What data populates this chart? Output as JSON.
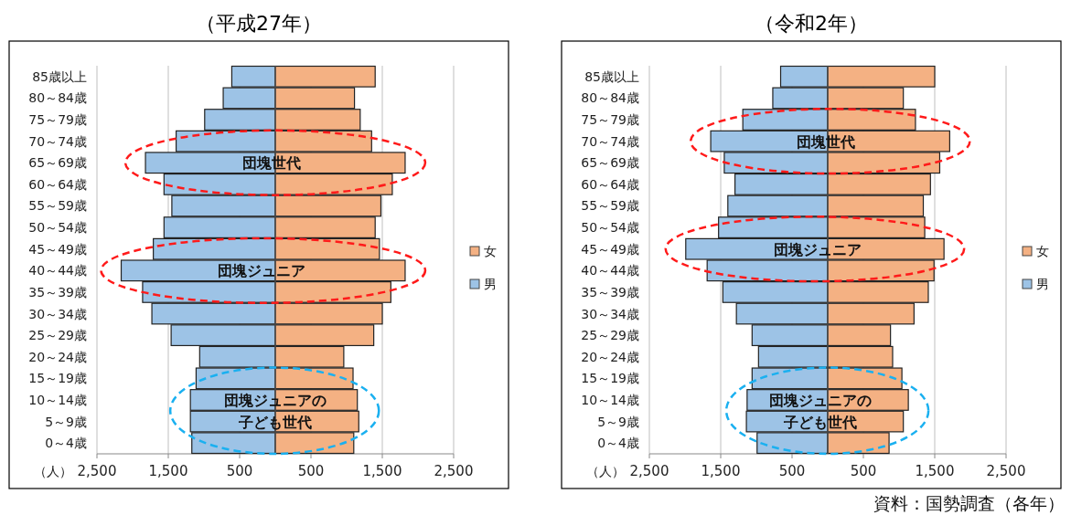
{
  "chart_data": [
    {
      "type": "bar",
      "orientation": "horizontal",
      "stacked": true,
      "title": "（平成27年）",
      "xlabel": "（人）",
      "categories": [
        "85歳以上",
        "80～84歳",
        "75～79歳",
        "70～74歳",
        "65～69歳",
        "60～64歳",
        "55～59歳",
        "50～54歳",
        "45～49歳",
        "40～44歳",
        "35～39歳",
        "30～34歳",
        "25～29歳",
        "20～24歳",
        "15～19歳",
        "10～14歳",
        "5～9歳",
        "0～4歳"
      ],
      "series": [
        {
          "name": "男",
          "color": "#9dc3e6",
          "values": [
            -610,
            -730,
            -990,
            -1390,
            -1820,
            -1560,
            -1450,
            -1560,
            -1710,
            -2160,
            -1860,
            -1730,
            -1460,
            -1060,
            -1110,
            -1190,
            -1190,
            -1170
          ]
        },
        {
          "name": "女",
          "color": "#f4b183",
          "values": [
            1400,
            1110,
            1190,
            1350,
            1820,
            1640,
            1480,
            1400,
            1460,
            1820,
            1620,
            1500,
            1380,
            960,
            1090,
            1150,
            1170,
            1100
          ]
        }
      ],
      "xlim": [
        -2500,
        2500
      ],
      "xticks": [
        {
          "value": -2500,
          "label": "2,500"
        },
        {
          "value": -1500,
          "label": "1,500"
        },
        {
          "value": -500,
          "label": "500"
        },
        {
          "value": 500,
          "label": "500"
        },
        {
          "value": 1500,
          "label": "1,500"
        },
        {
          "value": 2500,
          "label": "2,500"
        }
      ],
      "grid": "x",
      "legend": "right",
      "annotations": [
        {
          "text": "団塊世代",
          "x": -50,
          "y": "65～69歳"
        },
        {
          "text": "団塊ジュニア",
          "x": -190,
          "y": "40～44歳"
        },
        {
          "text": "団塊ジュニアの子ども世代",
          "x": 0,
          "y": "10～14歳"
        }
      ]
    },
    {
      "type": "bar",
      "orientation": "horizontal",
      "stacked": true,
      "title": "（令和2年）",
      "xlabel": "（人）",
      "categories": [
        "85歳以上",
        "80～84歳",
        "75～79歳",
        "70～74歳",
        "65～69歳",
        "60～64歳",
        "55～59歳",
        "50～54歳",
        "45～49歳",
        "40～44歳",
        "35～39歳",
        "30～34歳",
        "25～29歳",
        "20～24歳",
        "15～19歳",
        "10～14歳",
        "5～9歳",
        "0～4歳"
      ],
      "series": [
        {
          "name": "男",
          "color": "#9dc3e6",
          "values": [
            -660,
            -770,
            -1190,
            -1640,
            -1450,
            -1300,
            -1400,
            -1530,
            -1990,
            -1690,
            -1470,
            -1280,
            -1060,
            -970,
            -1060,
            -1130,
            -1140,
            -990
          ]
        },
        {
          "name": "女",
          "color": "#f4b183",
          "values": [
            1500,
            1060,
            1230,
            1710,
            1570,
            1440,
            1340,
            1360,
            1630,
            1490,
            1410,
            1210,
            880,
            910,
            1040,
            1130,
            1060,
            860
          ]
        }
      ],
      "xlim": [
        -2500,
        2500
      ],
      "xticks": [
        {
          "value": -2500,
          "label": "2,500"
        },
        {
          "value": -1500,
          "label": "1,500"
        },
        {
          "value": -500,
          "label": "500"
        },
        {
          "value": 500,
          "label": "500"
        },
        {
          "value": 1500,
          "label": "1,500"
        },
        {
          "value": 2500,
          "label": "2,500"
        }
      ],
      "grid": "x",
      "legend": "right",
      "annotations": [
        {
          "text": "団塊世代",
          "x": -25,
          "y": "70～74歳"
        },
        {
          "text": "団塊ジュニア",
          "x": -140,
          "y": "45～49歳"
        },
        {
          "text": "団塊ジュニアの子ども世代",
          "x": -100,
          "y": "10～14歳"
        },
        "資料：国勢調査（各年）"
      ]
    }
  ]
}
